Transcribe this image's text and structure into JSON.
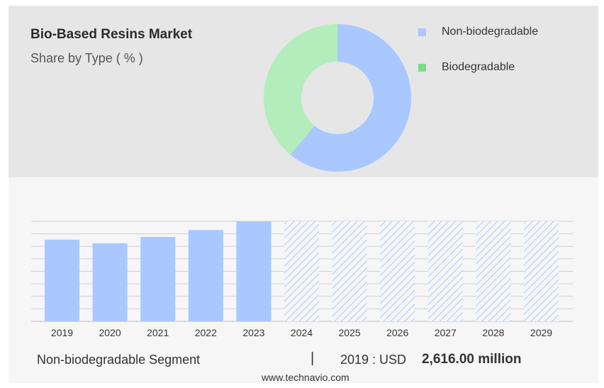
{
  "colors": {
    "non_biodegradable": "#a9c8ff",
    "biodegradable": "#b3edbb",
    "legend_non_bio": "#a9c8ff",
    "legend_bio": "#78dd86",
    "hatch": "#a9c8ff",
    "grid": "#cfcfcf",
    "axis": "#bdbdbd"
  },
  "chart_data": [
    {
      "type": "pie",
      "variant": "donut",
      "title": "Bio-Based Resins Market",
      "subtitle": "Share by Type ( % )",
      "legend_position": "top-right",
      "slices": [
        {
          "label": "Non-biodegradable",
          "value": 61
        },
        {
          "label": "Biodegradable",
          "value": 39
        }
      ]
    },
    {
      "type": "bar",
      "categories": [
        "2019",
        "2020",
        "2021",
        "2022",
        "2023",
        "2024",
        "2025",
        "2026",
        "2027",
        "2028",
        "2029"
      ],
      "values": [
        2616,
        2500,
        2700,
        2920,
        3200,
        3200,
        3200,
        3200,
        3200,
        3200,
        3200
      ],
      "forecast_from": "2024",
      "ylim": [
        0,
        3200
      ],
      "grid": true,
      "footer": {
        "segment": "Non-biodegradable Segment",
        "separator": "|",
        "year_label": "2019 : USD",
        "value_label": "2,616.00 million"
      }
    }
  ],
  "watermark": "www.technavio.com"
}
